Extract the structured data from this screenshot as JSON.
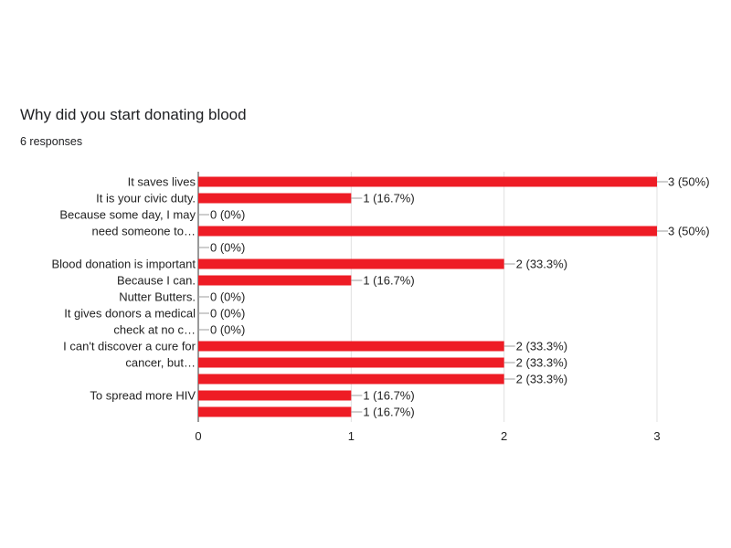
{
  "chart_data": {
    "type": "bar",
    "orientation": "horizontal",
    "title": "Why did you start donating blood",
    "subtitle": "6 responses",
    "bar_color": "#ee1c25",
    "xlim": [
      0,
      3
    ],
    "x_ticks": [
      "0",
      "1",
      "2",
      "3"
    ],
    "grid": true,
    "bars": [
      {
        "value": 3,
        "label": "3 (50%)"
      },
      {
        "value": 1,
        "label": "1 (16.7%)"
      },
      {
        "value": 0,
        "label": "0 (0%)"
      },
      {
        "value": 3,
        "label": "3 (50%)"
      },
      {
        "value": 0,
        "label": "0 (0%)"
      },
      {
        "value": 2,
        "label": "2 (33.3%)"
      },
      {
        "value": 1,
        "label": "1 (16.7%)"
      },
      {
        "value": 0,
        "label": "0 (0%)"
      },
      {
        "value": 0,
        "label": "0 (0%)"
      },
      {
        "value": 0,
        "label": "0 (0%)"
      },
      {
        "value": 2,
        "label": "2 (33.3%)"
      },
      {
        "value": 2,
        "label": "2 (33.3%)"
      },
      {
        "value": 2,
        "label": "2 (33.3%)"
      },
      {
        "value": 1,
        "label": "1 (16.7%)"
      },
      {
        "value": 1,
        "label": "1 (16.7%)"
      }
    ],
    "category_labels": [
      {
        "lines": [
          "It saves lives"
        ],
        "bar": 0
      },
      {
        "lines": [
          "It is your civic duty."
        ],
        "bar": 1
      },
      {
        "lines": [
          "Because some day, I may",
          "need someone to…"
        ],
        "bar": 2.5
      },
      {
        "lines": [
          "Blood donation is important"
        ],
        "bar": 5
      },
      {
        "lines": [
          "Because I can."
        ],
        "bar": 6
      },
      {
        "lines": [
          "Nutter Butters."
        ],
        "bar": 7
      },
      {
        "lines": [
          "It gives donors a medical",
          "check at no c…"
        ],
        "bar": 8.5
      },
      {
        "lines": [
          "I can't discover a cure for",
          "cancer, but…"
        ],
        "bar": 10.5
      },
      {
        "lines": [
          "To spread more HIV"
        ],
        "bar": 13
      }
    ]
  }
}
